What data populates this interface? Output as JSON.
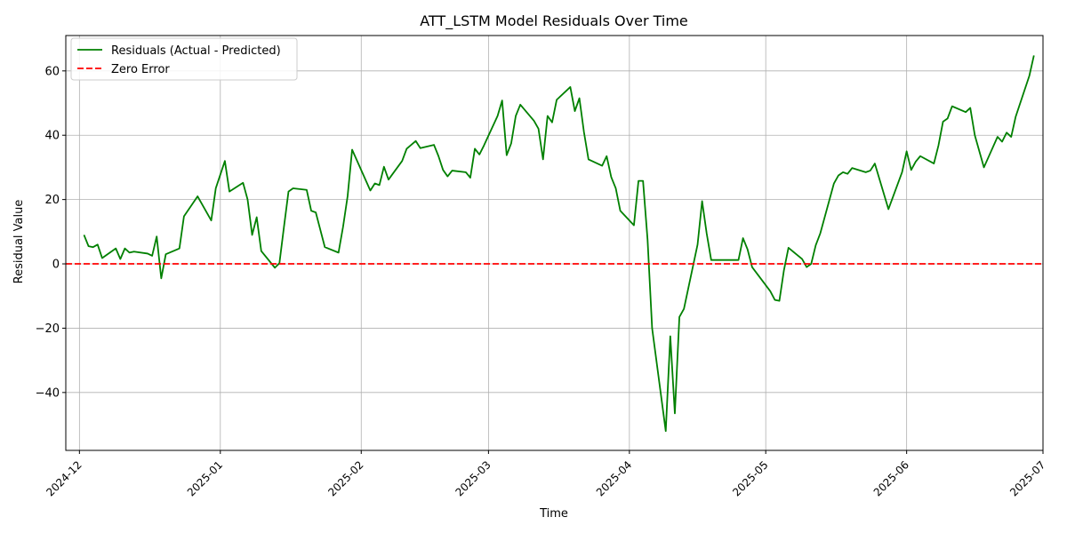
{
  "chart_data": {
    "type": "line",
    "title": "ATT_LSTM Model Residuals Over Time",
    "xlabel": "Time",
    "ylabel": "Residual Value",
    "xlim": [
      "2024-11-28",
      "2025-07-01"
    ],
    "ylim": [
      -58,
      71
    ],
    "x_ticks": [
      "2024-12",
      "2025-01",
      "2025-02",
      "2025-03",
      "2025-04",
      "2025-05",
      "2025-06",
      "2025-07"
    ],
    "y_ticks": [
      -40,
      -20,
      0,
      20,
      40,
      60
    ],
    "y_tick_labels": [
      "−40",
      "−20",
      "0",
      "20",
      "40",
      "60"
    ],
    "grid": true,
    "legend_position": "top-left",
    "series": [
      {
        "name": "Residuals (Actual - Predicted)",
        "color": "#008000",
        "style": "solid",
        "points": [
          [
            "2024-12-02",
            9.0
          ],
          [
            "2024-12-03",
            5.5
          ],
          [
            "2024-12-04",
            5.2
          ],
          [
            "2024-12-05",
            6.0
          ],
          [
            "2024-12-06",
            1.8
          ],
          [
            "2024-12-09",
            4.8
          ],
          [
            "2024-12-10",
            1.5
          ],
          [
            "2024-12-11",
            4.8
          ],
          [
            "2024-12-12",
            3.5
          ],
          [
            "2024-12-13",
            3.8
          ],
          [
            "2024-12-16",
            3.2
          ],
          [
            "2024-12-17",
            2.5
          ],
          [
            "2024-12-18",
            8.5
          ],
          [
            "2024-12-19",
            -4.5
          ],
          [
            "2024-12-20",
            3.0
          ],
          [
            "2024-12-23",
            4.8
          ],
          [
            "2024-12-24",
            14.8
          ],
          [
            "2024-12-27",
            21.0
          ],
          [
            "2024-12-30",
            13.5
          ],
          [
            "2024-12-31",
            23.5
          ],
          [
            "2025-01-02",
            32.0
          ],
          [
            "2025-01-03",
            22.5
          ],
          [
            "2025-01-06",
            25.2
          ],
          [
            "2025-01-07",
            20.0
          ],
          [
            "2025-01-08",
            9.0
          ],
          [
            "2025-01-09",
            14.5
          ],
          [
            "2025-01-10",
            4.0
          ],
          [
            "2025-01-13",
            -1.2
          ],
          [
            "2025-01-14",
            0.2
          ],
          [
            "2025-01-15",
            11.5
          ],
          [
            "2025-01-16",
            22.5
          ],
          [
            "2025-01-17",
            23.5
          ],
          [
            "2025-01-20",
            23.0
          ],
          [
            "2025-01-21",
            16.5
          ],
          [
            "2025-01-22",
            16.0
          ],
          [
            "2025-01-24",
            5.2
          ],
          [
            "2025-01-27",
            3.5
          ],
          [
            "2025-01-28",
            11.5
          ],
          [
            "2025-01-29",
            21.0
          ],
          [
            "2025-01-30",
            35.5
          ],
          [
            "2025-02-03",
            22.8
          ],
          [
            "2025-02-04",
            25.0
          ],
          [
            "2025-02-05",
            24.5
          ],
          [
            "2025-02-06",
            30.2
          ],
          [
            "2025-02-07",
            26.2
          ],
          [
            "2025-02-10",
            32.0
          ],
          [
            "2025-02-11",
            35.8
          ],
          [
            "2025-02-13",
            38.2
          ],
          [
            "2025-02-14",
            36.0
          ],
          [
            "2025-02-17",
            37.0
          ],
          [
            "2025-02-18",
            33.5
          ],
          [
            "2025-02-19",
            29.2
          ],
          [
            "2025-02-20",
            27.2
          ],
          [
            "2025-02-21",
            29.0
          ],
          [
            "2025-02-24",
            28.5
          ],
          [
            "2025-02-25",
            26.8
          ],
          [
            "2025-02-26",
            35.8
          ],
          [
            "2025-02-27",
            34.0
          ],
          [
            "2025-02-28",
            36.8
          ],
          [
            "2025-03-03",
            46.0
          ],
          [
            "2025-03-04",
            50.8
          ],
          [
            "2025-03-05",
            33.8
          ],
          [
            "2025-03-06",
            37.5
          ],
          [
            "2025-03-07",
            46.0
          ],
          [
            "2025-03-08",
            49.5
          ],
          [
            "2025-03-11",
            44.5
          ],
          [
            "2025-03-12",
            42.0
          ],
          [
            "2025-03-13",
            32.5
          ],
          [
            "2025-03-14",
            46.0
          ],
          [
            "2025-03-15",
            44.0
          ],
          [
            "2025-03-16",
            51.0
          ],
          [
            "2025-03-19",
            55.0
          ],
          [
            "2025-03-20",
            47.5
          ],
          [
            "2025-03-21",
            51.5
          ],
          [
            "2025-03-22",
            41.0
          ],
          [
            "2025-03-23",
            32.5
          ],
          [
            "2025-03-26",
            30.5
          ],
          [
            "2025-03-27",
            33.5
          ],
          [
            "2025-03-28",
            27.0
          ],
          [
            "2025-03-29",
            23.5
          ],
          [
            "2025-03-30",
            16.5
          ],
          [
            "2025-04-02",
            12.0
          ],
          [
            "2025-04-03",
            25.8
          ],
          [
            "2025-04-04",
            25.8
          ],
          [
            "2025-04-05",
            7.5
          ],
          [
            "2025-04-06",
            -20.0
          ],
          [
            "2025-04-09",
            -52.0
          ],
          [
            "2025-04-10",
            -22.5
          ],
          [
            "2025-04-11",
            -46.5
          ],
          [
            "2025-04-12",
            -16.5
          ],
          [
            "2025-04-13",
            -14.0
          ],
          [
            "2025-04-16",
            6.0
          ],
          [
            "2025-04-17",
            19.5
          ],
          [
            "2025-04-18",
            9.5
          ],
          [
            "2025-04-19",
            1.2
          ],
          [
            "2025-04-25",
            1.2
          ],
          [
            "2025-04-26",
            8.0
          ],
          [
            "2025-04-27",
            4.5
          ],
          [
            "2025-04-28",
            -1.0
          ],
          [
            "2025-05-02",
            -8.5
          ],
          [
            "2025-05-03",
            -11.2
          ],
          [
            "2025-05-04",
            -11.5
          ],
          [
            "2025-05-05",
            -2.0
          ],
          [
            "2025-05-06",
            5.0
          ],
          [
            "2025-05-09",
            1.5
          ],
          [
            "2025-05-10",
            -1.0
          ],
          [
            "2025-05-11",
            0.0
          ],
          [
            "2025-05-12",
            5.8
          ],
          [
            "2025-05-13",
            9.5
          ],
          [
            "2025-05-16",
            25.0
          ],
          [
            "2025-05-17",
            27.5
          ],
          [
            "2025-05-18",
            28.5
          ],
          [
            "2025-05-19",
            28.0
          ],
          [
            "2025-05-20",
            29.8
          ],
          [
            "2025-05-23",
            28.5
          ],
          [
            "2025-05-24",
            29.0
          ],
          [
            "2025-05-25",
            31.2
          ],
          [
            "2025-05-28",
            17.0
          ],
          [
            "2025-05-31",
            28.5
          ],
          [
            "2025-06-01",
            35.0
          ],
          [
            "2025-06-02",
            29.2
          ],
          [
            "2025-06-03",
            31.8
          ],
          [
            "2025-06-04",
            33.5
          ],
          [
            "2025-06-07",
            31.2
          ],
          [
            "2025-06-08",
            36.8
          ],
          [
            "2025-06-09",
            44.2
          ],
          [
            "2025-06-10",
            45.2
          ],
          [
            "2025-06-11",
            49.0
          ],
          [
            "2025-06-14",
            47.2
          ],
          [
            "2025-06-15",
            48.5
          ],
          [
            "2025-06-16",
            40.0
          ],
          [
            "2025-06-17",
            35.0
          ],
          [
            "2025-06-18",
            30.0
          ],
          [
            "2025-06-21",
            39.5
          ],
          [
            "2025-06-22",
            38.0
          ],
          [
            "2025-06-23",
            40.8
          ],
          [
            "2025-06-24",
            39.5
          ],
          [
            "2025-06-25",
            45.8
          ],
          [
            "2025-06-28",
            58.5
          ],
          [
            "2025-06-29",
            64.8
          ]
        ]
      },
      {
        "name": "Zero Error",
        "color": "#ff0000",
        "style": "dashed",
        "value": 0
      }
    ]
  }
}
